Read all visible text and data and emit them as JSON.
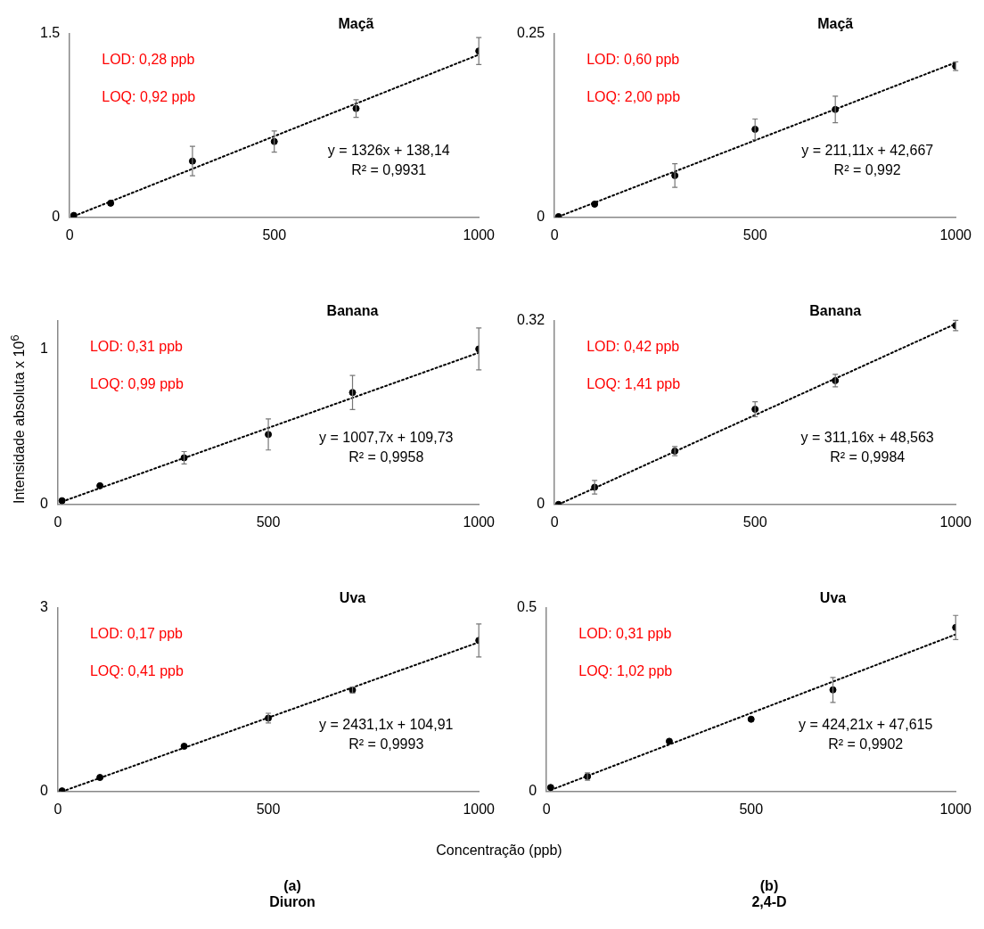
{
  "chart_data": [
    {
      "type": "scatter",
      "title": "Maçã",
      "xlim": [
        0,
        1000
      ],
      "xticks": [
        0,
        500,
        1000
      ],
      "ylim": [
        0,
        1.5
      ],
      "yticks": [
        0,
        1.5
      ],
      "series": [
        {
          "color": "#000000",
          "marker": "circle",
          "x": [
            10,
            100,
            300,
            500,
            700,
            1000
          ],
          "values": [
            0.016,
            0.116,
            0.46,
            0.62,
            0.89,
            1.36
          ],
          "errors": [
            null,
            null,
            0.12,
            0.087,
            0.072,
            0.11
          ]
        },
        {
          "type": "line",
          "color": "#000000",
          "line_style": "dotted",
          "x": [
            10,
            1000
          ],
          "values": [
            0.01,
            1.33
          ]
        }
      ],
      "annotations": [
        "LOD: 0,28 ppb",
        "LOQ: 0,92 ppb",
        "y = 1326x + 138,14",
        "R² = 0,9931"
      ]
    },
    {
      "type": "scatter",
      "title": "Maçã",
      "xlim": [
        0,
        1000
      ],
      "xticks": [
        0,
        500,
        1000
      ],
      "ylim": [
        0,
        0.25
      ],
      "yticks": [
        0,
        0.25
      ],
      "series": [
        {
          "color": "#000000",
          "marker": "circle",
          "x": [
            10,
            100,
            300,
            500,
            700,
            1000
          ],
          "values": [
            0.001,
            0.018,
            0.057,
            0.12,
            0.147,
            0.206
          ],
          "errors": [
            null,
            null,
            0.016,
            0.014,
            0.018,
            0.006
          ]
        },
        {
          "type": "line",
          "color": "#000000",
          "line_style": "dotted",
          "x": [
            10,
            1000
          ],
          "values": [
            0.001,
            0.211
          ]
        }
      ],
      "annotations": [
        "LOD: 0,60 ppb",
        "LOQ: 2,00 ppb",
        "y = 211,11x + 42,667",
        "R² = 0,992"
      ]
    },
    {
      "type": "scatter",
      "title": "Banana",
      "ylabel": "Intensidade absoluta x 10$^{6}$",
      "xlim": [
        0,
        1000
      ],
      "xticks": [
        0,
        500,
        1000
      ],
      "ylim": [
        0,
        1.18
      ],
      "yticks": [
        0,
        1
      ],
      "series": [
        {
          "color": "#000000",
          "marker": "circle",
          "x": [
            10,
            100,
            300,
            500,
            700,
            1000
          ],
          "values": [
            0.024,
            0.12,
            0.3,
            0.45,
            0.72,
            1.0
          ],
          "errors": [
            null,
            null,
            0.04,
            0.1,
            0.11,
            0.135
          ]
        },
        {
          "type": "line",
          "color": "#000000",
          "line_style": "dotted",
          "x": [
            10,
            1000
          ],
          "values": [
            0.018,
            0.976
          ]
        }
      ],
      "annotations": [
        "LOD: 0,31 ppb",
        "LOQ: 0,99 ppb",
        "y = 1007,7x + 109,73",
        "R² = 0,9958"
      ]
    },
    {
      "type": "scatter",
      "title": "Banana",
      "xlim": [
        0,
        1000
      ],
      "xticks": [
        0,
        500,
        1000
      ],
      "ylim": [
        0,
        0.32
      ],
      "yticks": [
        0,
        0.32
      ],
      "series": [
        {
          "color": "#000000",
          "marker": "circle",
          "x": [
            10,
            100,
            300,
            500,
            700,
            1000
          ],
          "values": [
            0.0,
            0.03,
            0.093,
            0.166,
            0.216,
            0.312
          ],
          "errors": [
            null,
            0.012,
            0.008,
            0.013,
            0.011,
            0.009
          ]
        },
        {
          "type": "line",
          "color": "#000000",
          "line_style": "dotted",
          "x": [
            10,
            1000
          ],
          "values": [
            0.0,
            0.315
          ]
        }
      ],
      "annotations": [
        "LOD: 0,42 ppb",
        "LOQ: 1,41 ppb",
        "y = 311,16x + 48,563",
        "R² = 0,9984"
      ]
    },
    {
      "type": "scatter",
      "title": "Uva",
      "xlabel": "Concentração (ppb)",
      "xlim": [
        0,
        1000
      ],
      "xticks": [
        0,
        500,
        1000
      ],
      "ylim": [
        0,
        3
      ],
      "yticks": [
        0,
        3
      ],
      "series": [
        {
          "color": "#000000",
          "marker": "circle",
          "x": [
            10,
            100,
            300,
            500,
            700,
            1000
          ],
          "values": [
            0.01,
            0.23,
            0.74,
            1.2,
            1.66,
            2.47
          ],
          "errors": [
            null,
            null,
            null,
            0.08,
            0.05,
            0.27
          ]
        },
        {
          "type": "line",
          "color": "#000000",
          "line_style": "dotted",
          "x": [
            10,
            1000
          ],
          "values": [
            0.0,
            2.44
          ]
        }
      ],
      "annotations": [
        "LOD: 0,17 ppb",
        "LOQ: 0,41 ppb",
        "y = 2431,1x + 104,91",
        "R² = 0,9993",
        "(a)",
        "Diuron"
      ]
    },
    {
      "type": "scatter",
      "title": "Uva",
      "xlim": [
        0,
        1000
      ],
      "xticks": [
        0,
        500,
        1000
      ],
      "ylim": [
        0,
        0.5
      ],
      "yticks": [
        0,
        0.5
      ],
      "series": [
        {
          "color": "#000000",
          "marker": "circle",
          "x": [
            10,
            100,
            300,
            500,
            700,
            1000
          ],
          "values": [
            0.011,
            0.041,
            0.137,
            0.197,
            0.277,
            0.447
          ],
          "errors": [
            null,
            0.01,
            null,
            null,
            0.034,
            0.033
          ]
        },
        {
          "type": "line",
          "color": "#000000",
          "line_style": "dotted",
          "x": [
            10,
            1000
          ],
          "values": [
            0.004,
            0.428
          ]
        }
      ],
      "annotations": [
        "LOD: 0,31 ppb",
        "LOQ: 1,02 ppb",
        "y = 424,21x + 47,615",
        "R² = 0,9902",
        "(b)",
        "2,4-D"
      ]
    }
  ]
}
